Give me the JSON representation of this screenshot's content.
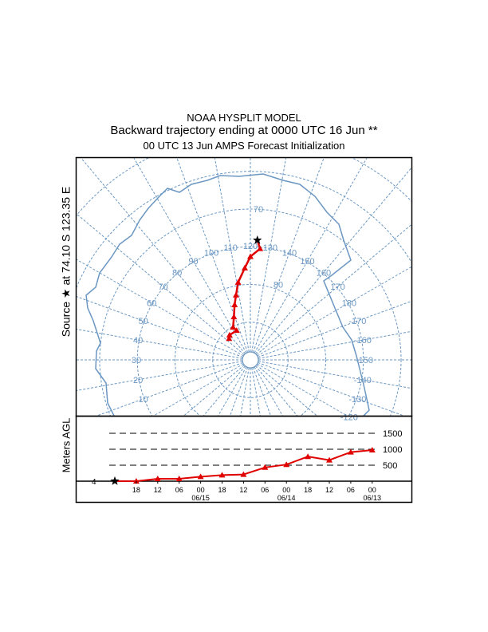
{
  "title": {
    "line1": "NOAA HYSPLIT MODEL",
    "line2": "Backward trajectory ending at 0000 UTC 16 Jun **",
    "line3": "00 UTC 13 Jun    AMPS  Forecast Initialization"
  },
  "map_ylabel": "Source ★ at   74.10 S  123.35 E",
  "height_ylabel": "Meters AGL",
  "colors": {
    "grid": "#6b97c2",
    "trajectory": "#e00000",
    "frame": "#000000"
  },
  "chart_data": [
    {
      "type": "scatter",
      "title": "Trajectory map (south polar stereographic)",
      "source": {
        "lat": -74.1,
        "lon": 123.35
      },
      "latitude_labels": [
        "70",
        "80"
      ],
      "latitude_label_values": [
        70,
        80
      ],
      "latitude_circles": [
        85,
        80,
        75,
        70,
        65,
        60
      ],
      "longitude_labels": [
        "10",
        "20",
        "30",
        "40",
        "50",
        "60",
        "70",
        "80",
        "90",
        "100",
        "110",
        "120",
        "130",
        "140",
        "150",
        "160",
        "170",
        "180",
        "-170",
        "-160",
        "-150",
        "-140",
        "-130",
        "-120"
      ],
      "trajectory": {
        "lat": [
          -74.1,
          -75.2,
          -76.3,
          -77.8,
          -79.6,
          -81.2,
          -82.4,
          -83.9,
          -85.1,
          -85.7,
          -85.7,
          -86.0
        ],
        "lon": [
          123.35,
          125,
          120,
          116.5,
          111,
          107.5,
          104,
          99,
          92,
          95,
          80,
          75
        ]
      }
    },
    {
      "type": "line",
      "title": "Height profile",
      "ylabel": "Meters AGL",
      "ylim": [
        0,
        1600
      ],
      "yticks": [
        "500",
        "1000",
        "1500"
      ],
      "ytick_values": [
        500,
        1000,
        1500
      ],
      "start_label": "4",
      "start_height": 4,
      "xtick_labels": [
        "18",
        "12",
        "06",
        "00",
        "18",
        "12",
        "06",
        "00",
        "18",
        "12",
        "06",
        "00"
      ],
      "date_labels": [
        "06/15",
        "06/14",
        "06/13"
      ],
      "hours_back": [
        0,
        6,
        12,
        18,
        24,
        30,
        36,
        42,
        48,
        54,
        60,
        66,
        72
      ],
      "heights": [
        4,
        0,
        75,
        75,
        140,
        190,
        210,
        430,
        520,
        770,
        660,
        910,
        975
      ]
    }
  ]
}
